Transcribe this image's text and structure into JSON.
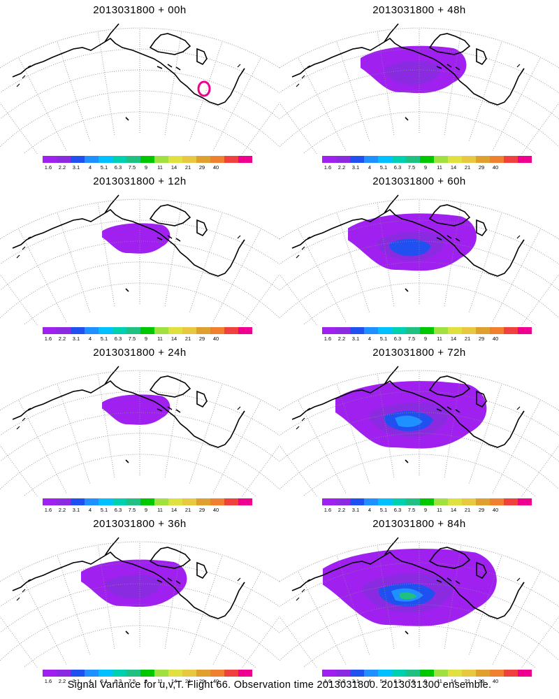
{
  "panels": [
    {
      "title": "2013031800 + 00h"
    },
    {
      "title": "2013031800 + 48h"
    },
    {
      "title": "2013031800 + 12h"
    },
    {
      "title": "2013031800 + 60h"
    },
    {
      "title": "2013031800 + 24h"
    },
    {
      "title": "2013031800 + 72h"
    },
    {
      "title": "2013031800 + 36h"
    },
    {
      "title": "2013031800 + 84h"
    }
  ],
  "colorbar": {
    "colors": [
      "#a020f0",
      "#8a2be2",
      "#2050f0",
      "#1e90ff",
      "#00c0ff",
      "#00d0b0",
      "#20c080",
      "#00c800",
      "#a0e040",
      "#e0e040",
      "#e8c840",
      "#e0a030",
      "#f08030",
      "#f04040",
      "#f00090"
    ],
    "labels": [
      "1.6",
      "2.2",
      "3.1",
      "4",
      "5.1",
      "6.3",
      "7.5",
      "9",
      "11",
      "14",
      "21",
      "29",
      "40"
    ]
  },
  "caption": "Signal Variance for u,v,T. Flight 66. Observation time 2013031800. 2013031300 ensemble."
}
